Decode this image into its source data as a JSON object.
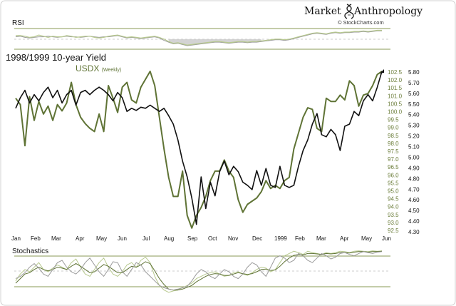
{
  "header": {
    "brand_word1": "Market",
    "brand_word2": "Anthropology",
    "brand_mark": "dna-helix-icon",
    "source": "© StockCharts.com"
  },
  "panels": {
    "rsi_label": "RSI",
    "stoch_label": "Stochastics"
  },
  "colors": {
    "yield_line": "#111111",
    "usdx_line": "#5f7335",
    "usdx_axis": "#6b7d3a",
    "indicator_light": "#b7c98e",
    "indicator_grey": "#9a9a9a",
    "panel_rule": "#8a9a55",
    "shade": "#c8c8c8"
  },
  "chart_data": [
    {
      "type": "line",
      "title": "1998/1999 10-year Yield",
      "subtitle": "USDX",
      "subtitle_note": "(Weekly)",
      "x_ticks": [
        "Jan",
        "Feb",
        "Mar",
        "Apr",
        "May",
        "Jun",
        "Jul",
        "Aug",
        "Sep",
        "Oct",
        "Nov",
        "Dec",
        "1999",
        "Feb",
        "Mar",
        "Apr",
        "May",
        "Jun"
      ],
      "grid": false,
      "legend": "top-left",
      "y_left_ticks": [
        "102.5",
        "102.0",
        "101.5",
        "101.0",
        "100.5",
        "100.0",
        "99.5",
        "99.0",
        "98.5",
        "98.0",
        "97.5",
        "97.0",
        "96.5",
        "96.0",
        "95.5",
        "95.0",
        "94.5",
        "94.0",
        "93.5",
        "93.0",
        "92.5"
      ],
      "y_right_ticks": [
        "5.80",
        "5.70",
        "5.60",
        "5.50",
        "5.40",
        "5.30",
        "5.20",
        "5.10",
        "5.00",
        "4.90",
        "4.80",
        "4.70",
        "4.60",
        "4.50",
        "4.40",
        "4.30"
      ],
      "usdx_range": [
        92.5,
        102.5
      ],
      "yield_range": [
        4.3,
        5.8
      ],
      "series": [
        {
          "name": "1998/1999 10-year Yield",
          "axis": "right",
          "values": [
            5.45,
            5.55,
            5.62,
            5.5,
            5.58,
            5.52,
            5.6,
            5.65,
            5.55,
            5.62,
            5.5,
            5.58,
            5.62,
            5.48,
            5.6,
            5.62,
            5.58,
            5.62,
            5.65,
            5.62,
            5.58,
            5.52,
            5.6,
            5.55,
            5.42,
            5.45,
            5.43,
            5.46,
            5.45,
            5.48,
            5.45,
            5.42,
            5.45,
            5.38,
            5.3,
            5.15,
            4.95,
            4.8,
            4.6,
            4.35,
            4.8,
            4.5,
            4.75,
            4.62,
            4.85,
            4.95,
            4.82,
            4.9,
            4.85,
            4.75,
            4.72,
            4.68,
            4.86,
            4.72,
            4.88,
            4.72,
            4.7,
            4.9,
            4.72,
            4.7,
            4.72,
            4.9,
            5.05,
            5.15,
            5.3,
            5.4,
            5.2,
            5.18,
            5.25,
            5.2,
            5.05,
            5.28,
            5.3,
            5.42,
            5.38,
            5.52,
            5.58,
            5.52,
            5.65,
            5.8
          ]
        },
        {
          "name": "USDX",
          "axis": "left",
          "values": [
            100.8,
            100.4,
            97.8,
            100.9,
            99.4,
            100.6,
            99.8,
            100.3,
            99.4,
            100.4,
            100.0,
            100.5,
            101.8,
            100.4,
            99.6,
            99.2,
            98.9,
            98.7,
            99.8,
            98.7,
            101.6,
            100.8,
            99.9,
            101.5,
            101.8,
            100.7,
            100.5,
            101.5,
            102.0,
            102.5,
            101.6,
            99.6,
            97.6,
            95.8,
            94.6,
            94.6,
            96.2,
            93.4,
            92.6,
            93.4,
            93.9,
            94.6,
            95.6,
            96.2,
            96.2,
            96.9,
            96.2,
            95.8,
            94.4,
            93.6,
            94.1,
            94.3,
            94.5,
            94.9,
            95.6,
            95.1,
            95.3,
            95.1,
            95.6,
            95.8,
            97.6,
            98.6,
            99.6,
            100.2,
            100.1,
            98.9,
            98.7,
            100.8,
            100.6,
            100.6,
            101.0,
            100.7,
            101.9,
            101.6,
            100.3,
            101.0,
            101.1,
            101.6,
            102.3,
            102.5
          ]
        }
      ]
    },
    {
      "type": "line",
      "title": "RSI",
      "grid": false,
      "series": [
        {
          "name": "",
          "values": [
            58,
            58,
            57,
            55,
            56,
            59,
            57,
            55,
            57,
            56,
            56,
            58,
            57,
            55,
            56,
            57,
            57,
            55,
            54,
            55,
            57,
            58,
            59,
            57,
            55,
            56,
            55,
            54,
            55,
            56,
            57,
            55,
            52,
            48,
            45,
            46,
            44,
            42,
            43,
            44,
            45,
            46,
            47,
            48,
            48,
            47,
            46,
            47,
            48,
            48,
            47,
            48,
            48,
            49,
            50,
            51,
            52,
            52,
            51,
            52,
            54,
            56,
            58,
            60,
            62,
            63,
            62,
            61,
            63,
            64,
            63,
            64,
            64,
            65,
            65,
            66,
            65,
            66,
            67,
            67
          ]
        },
        {
          "name": "",
          "values": [
            56,
            57,
            55,
            54,
            55,
            56,
            56,
            57,
            56,
            55,
            56,
            57,
            56,
            56,
            55,
            56,
            57,
            56,
            55,
            56,
            56,
            57,
            58,
            56,
            54,
            55,
            54,
            53,
            54,
            55,
            56,
            54,
            50,
            47,
            44,
            45,
            43,
            41,
            42,
            43,
            44,
            45,
            46,
            47,
            47,
            46,
            45,
            46,
            47,
            47,
            46,
            47,
            47,
            48,
            49,
            50,
            51,
            51,
            50,
            51,
            53,
            55,
            57,
            59,
            61,
            62,
            61,
            60,
            62,
            63,
            62,
            63,
            63,
            64,
            64,
            65,
            64,
            65,
            66,
            66
          ]
        }
      ]
    },
    {
      "type": "line",
      "title": "Stochastics",
      "grid": false,
      "series": [
        {
          "name": "",
          "values": [
            30,
            45,
            55,
            50,
            60,
            70,
            55,
            50,
            58,
            65,
            60,
            55,
            70,
            78,
            60,
            45,
            40,
            55,
            70,
            80,
            60,
            45,
            40,
            50,
            65,
            70,
            60,
            75,
            82,
            70,
            40,
            20,
            10,
            5,
            8,
            10,
            15,
            20,
            25,
            35,
            40,
            45,
            48,
            50,
            45,
            40,
            42,
            48,
            50,
            45,
            42,
            48,
            55,
            60,
            58,
            50,
            55,
            70,
            85,
            90,
            95,
            92,
            88,
            95,
            92,
            90,
            88,
            92,
            90,
            92,
            95,
            94,
            92,
            95,
            96,
            95,
            94,
            96,
            95,
            96
          ]
        },
        {
          "name": "",
          "values": [
            25,
            35,
            45,
            48,
            55,
            60,
            55,
            52,
            55,
            60,
            58,
            55,
            62,
            68,
            62,
            55,
            48,
            50,
            58,
            66,
            62,
            55,
            48,
            48,
            55,
            62,
            60,
            65,
            72,
            68,
            52,
            35,
            22,
            12,
            10,
            10,
            12,
            16,
            20,
            28,
            34,
            40,
            44,
            46,
            45,
            42,
            42,
            45,
            48,
            46,
            44,
            46,
            50,
            55,
            56,
            53,
            54,
            62,
            72,
            80,
            86,
            88,
            87,
            90,
            90,
            89,
            88,
            90,
            89,
            90,
            92,
            92,
            91,
            93,
            94,
            94,
            93,
            94,
            94,
            95
          ]
        },
        {
          "name": "",
          "values": [
            35,
            40,
            48,
            60,
            68,
            58,
            45,
            40,
            55,
            70,
            75,
            60,
            50,
            45,
            55,
            70,
            80,
            65,
            50,
            40,
            55,
            72,
            70,
            50,
            40,
            55,
            70,
            65,
            50,
            40,
            30,
            20,
            15,
            12,
            10,
            12,
            15,
            18,
            30,
            45,
            55,
            50,
            40,
            35,
            45,
            55,
            50,
            40,
            35,
            45,
            60,
            70,
            65,
            50,
            40,
            60,
            80,
            85,
            80,
            70,
            75,
            90,
            85,
            75,
            70,
            80,
            90,
            85,
            78,
            82,
            90,
            92,
            88,
            85,
            90,
            94,
            92,
            90,
            93,
            94
          ]
        }
      ]
    }
  ]
}
